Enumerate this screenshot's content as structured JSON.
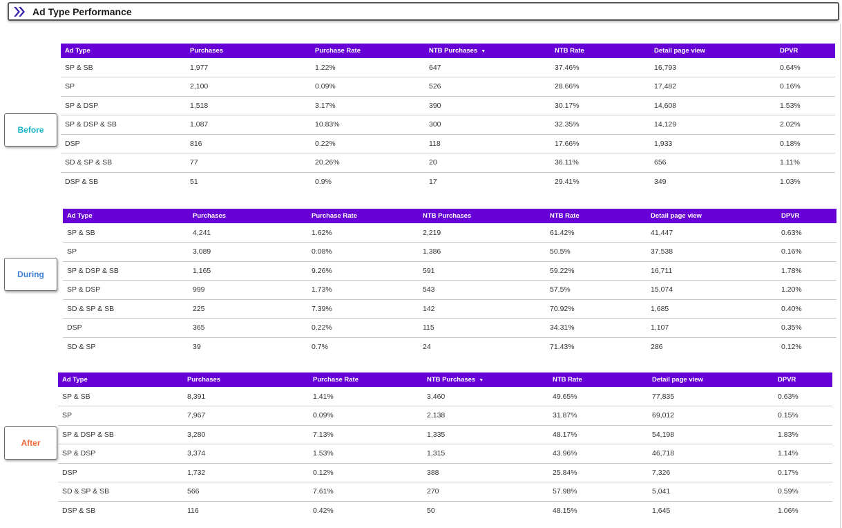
{
  "title": "Ad Type Performance",
  "colors": {
    "header_bg": "#6600d6",
    "before": "#19b3c8",
    "during": "#3f7fd4",
    "after": "#f06a3c"
  },
  "phases": [
    {
      "label": "Before"
    },
    {
      "label": "During"
    },
    {
      "label": "After"
    }
  ],
  "tables": [
    {
      "headers": [
        "Ad Type",
        "Purchases",
        "Purchase Rate",
        "NTB Purchases",
        "NTB Rate",
        "Detail page view",
        "DPVR"
      ],
      "sort_indicator": "▼",
      "rows": [
        [
          "SP & SB",
          "1,977",
          "1.22%",
          "647",
          "37.46%",
          "16,793",
          "0.64%"
        ],
        [
          "SP",
          "2,100",
          "0.09%",
          "526",
          "28.66%",
          "17,482",
          "0.16%"
        ],
        [
          "SP & DSP",
          "1,518",
          "3.17%",
          "390",
          "30.17%",
          "14,608",
          "1.53%"
        ],
        [
          "SP & DSP & SB",
          "1,087",
          "10.83%",
          "300",
          "32.35%",
          "14,129",
          "2.02%"
        ],
        [
          "DSP",
          "816",
          "0.22%",
          "118",
          "17.66%",
          "1,933",
          "0.18%"
        ],
        [
          "SD & SP & SB",
          "77",
          "20.26%",
          "20",
          "36.11%",
          "656",
          "1.11%"
        ],
        [
          "DSP & SB",
          "51",
          "0.9%",
          "17",
          "29.41%",
          "349",
          "1.03%"
        ]
      ]
    },
    {
      "headers": [
        "Ad Type",
        "Purchases",
        "Purchase Rate",
        "NTB Purchases",
        "NTB Rate",
        "Detail page view",
        "DPVR"
      ],
      "sort_indicator": "",
      "rows": [
        [
          "SP & SB",
          "4,241",
          "1.62%",
          "2,219",
          "61.42%",
          "41,447",
          "0.63%"
        ],
        [
          "SP",
          "3,089",
          "0.08%",
          "1,386",
          "50.5%",
          "37,538",
          "0.16%"
        ],
        [
          "SP & DSP & SB",
          "1,165",
          "9.26%",
          "591",
          "59.22%",
          "16,711",
          "1.78%"
        ],
        [
          "SP & DSP",
          "999",
          "1.73%",
          "543",
          "57.5%",
          "15,074",
          "1.20%"
        ],
        [
          "SD & SP & SB",
          "225",
          "7.39%",
          "142",
          "70.92%",
          "1,685",
          "0.40%"
        ],
        [
          "DSP",
          "365",
          "0.22%",
          "115",
          "34.31%",
          "1,107",
          "0.35%"
        ],
        [
          "SD & SP",
          "39",
          "0.7%",
          "24",
          "71.43%",
          "286",
          "0.12%"
        ]
      ]
    },
    {
      "headers": [
        "Ad Type",
        "Purchases",
        "Purchase Rate",
        "NTB Purchases",
        "NTB Rate",
        "Detail page view",
        "DPVR"
      ],
      "sort_indicator": "▼",
      "rows": [
        [
          "SP & SB",
          "8,391",
          "1.41%",
          "3,460",
          "49.65%",
          "77,835",
          "0.63%"
        ],
        [
          "SP",
          "7,967",
          "0.09%",
          "2,138",
          "31.87%",
          "69,012",
          "0.15%"
        ],
        [
          "SP & DSP & SB",
          "3,280",
          "7.13%",
          "1,335",
          "48.17%",
          "54,198",
          "1.83%"
        ],
        [
          "SP & DSP",
          "3,374",
          "1.53%",
          "1,315",
          "43.96%",
          "46,718",
          "1.14%"
        ],
        [
          "DSP",
          "1,732",
          "0.12%",
          "388",
          "25.84%",
          "7,326",
          "0.17%"
        ],
        [
          "SD & SP & SB",
          "566",
          "7.61%",
          "270",
          "57.98%",
          "5,041",
          "0.59%"
        ],
        [
          "DSP & SB",
          "116",
          "0.42%",
          "50",
          "48.15%",
          "1,645",
          "1.06%"
        ]
      ]
    }
  ]
}
